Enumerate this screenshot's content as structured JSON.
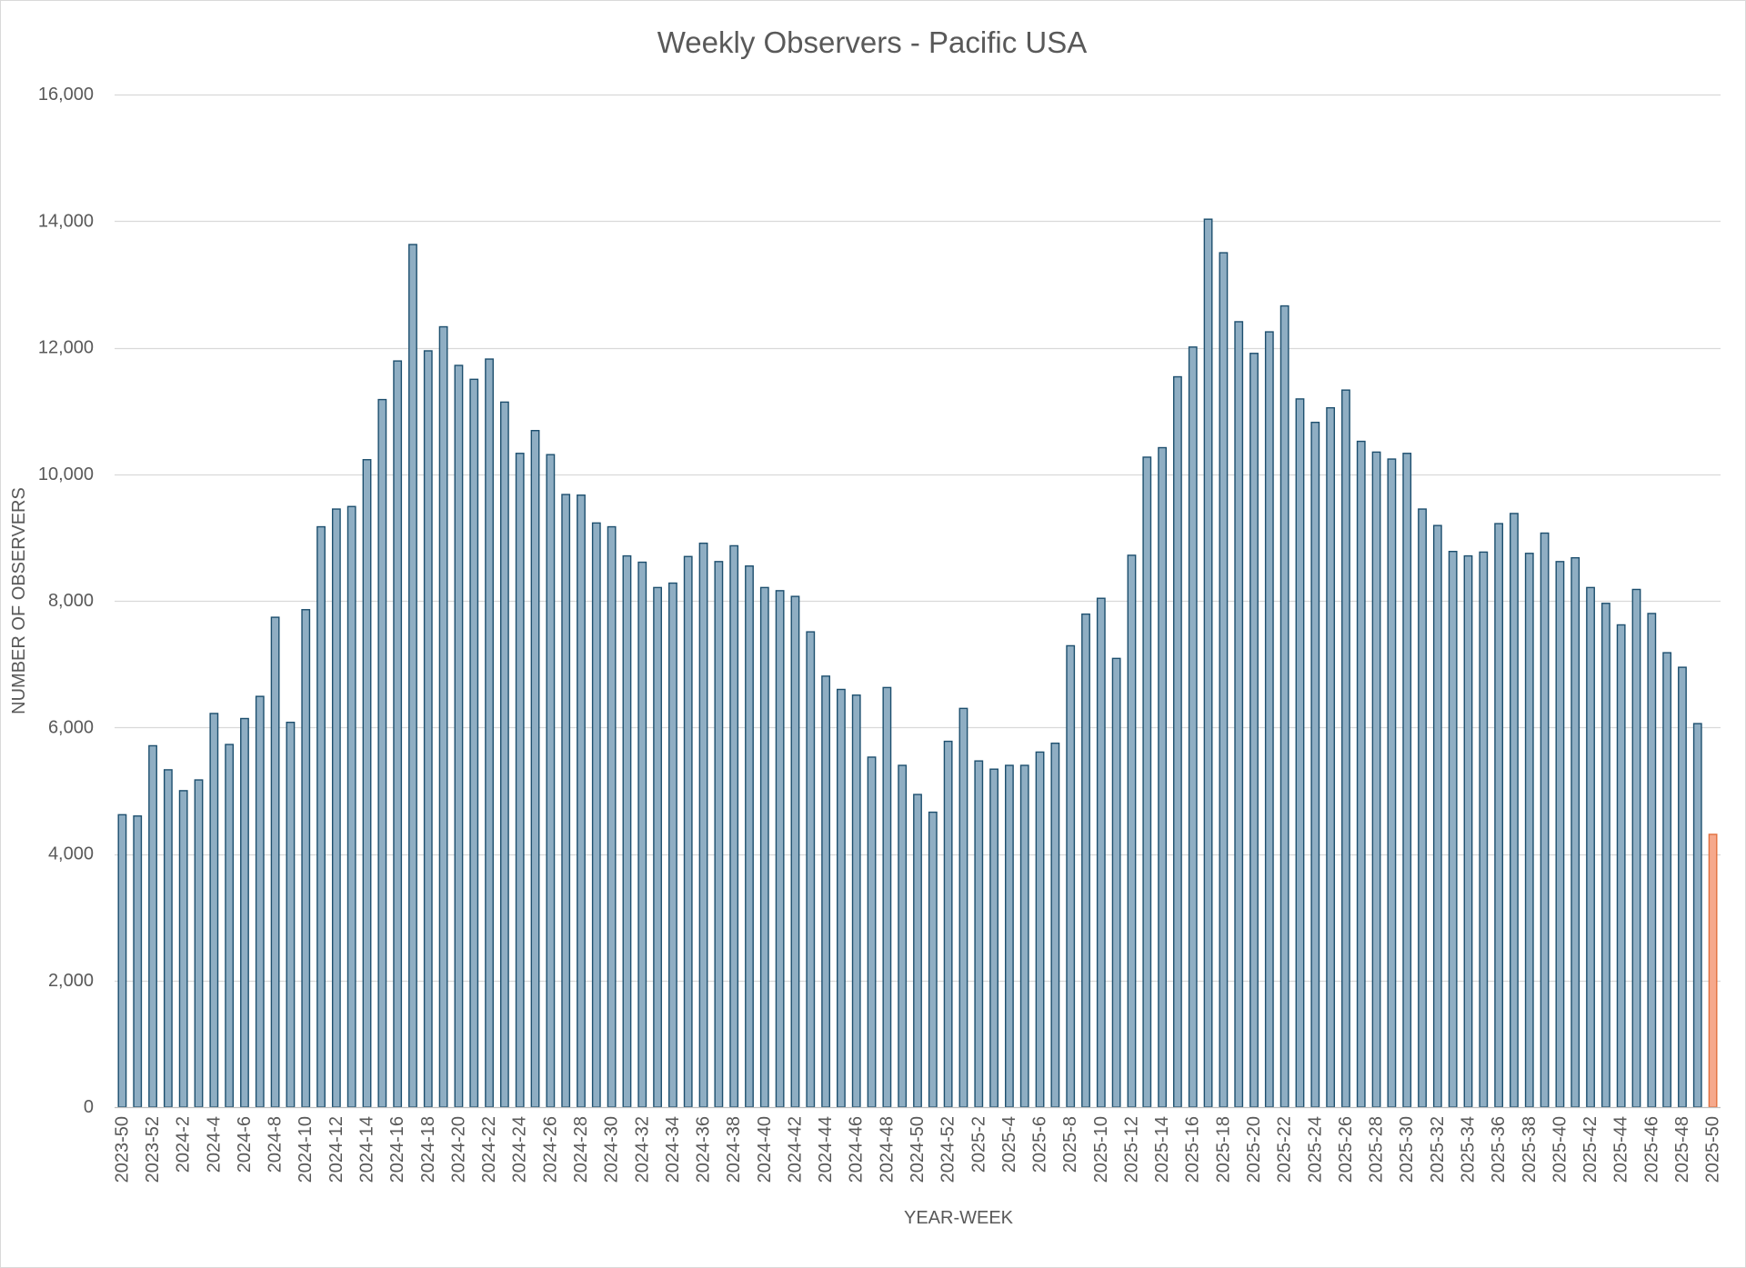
{
  "chart_data": {
    "type": "bar",
    "title": "Weekly Observers - Pacific USA",
    "xlabel": "YEAR-WEEK",
    "ylabel": "NUMBER OF OBSERVERS",
    "ylim": [
      0,
      16000
    ],
    "yticks": [
      0,
      2000,
      4000,
      6000,
      8000,
      10000,
      12000,
      14000,
      16000
    ],
    "ytick_labels": [
      "0",
      "2,000",
      "4,000",
      "6,000",
      "8,000",
      "10,000",
      "12,000",
      "14,000",
      "16,000"
    ],
    "grid": true,
    "xtick_every": 2,
    "highlighted_category": "2025-50",
    "colors": {
      "bar_fill": "#8FAEC3",
      "bar_edge": "#1D4F6E",
      "highlight_fill": "#F6A98C",
      "highlight_edge": "#E2703F",
      "grid": "#D9D9D9",
      "text": "#595959"
    },
    "categories": [
      "2023-50",
      "2023-51",
      "2023-52",
      "2024-1",
      "2024-2",
      "2024-3",
      "2024-4",
      "2024-5",
      "2024-6",
      "2024-7",
      "2024-8",
      "2024-9",
      "2024-10",
      "2024-11",
      "2024-12",
      "2024-13",
      "2024-14",
      "2024-15",
      "2024-16",
      "2024-17",
      "2024-18",
      "2024-19",
      "2024-20",
      "2024-21",
      "2024-22",
      "2024-23",
      "2024-24",
      "2024-25",
      "2024-26",
      "2024-27",
      "2024-28",
      "2024-29",
      "2024-30",
      "2024-31",
      "2024-32",
      "2024-33",
      "2024-34",
      "2024-35",
      "2024-36",
      "2024-37",
      "2024-38",
      "2024-39",
      "2024-40",
      "2024-41",
      "2024-42",
      "2024-43",
      "2024-44",
      "2024-45",
      "2024-46",
      "2024-47",
      "2024-48",
      "2024-49",
      "2024-50",
      "2024-51",
      "2024-52",
      "2025-1",
      "2025-2",
      "2025-3",
      "2025-4",
      "2025-5",
      "2025-6",
      "2025-7",
      "2025-8",
      "2025-9",
      "2025-10",
      "2025-11",
      "2025-12",
      "2025-13",
      "2025-14",
      "2025-15",
      "2025-16",
      "2025-17",
      "2025-18",
      "2025-19",
      "2025-20",
      "2025-21",
      "2025-22",
      "2025-23",
      "2025-24",
      "2025-25",
      "2025-26",
      "2025-27",
      "2025-28",
      "2025-29",
      "2025-30",
      "2025-31",
      "2025-32",
      "2025-33",
      "2025-34",
      "2025-35",
      "2025-36",
      "2025-37",
      "2025-38",
      "2025-39",
      "2025-40",
      "2025-41",
      "2025-42",
      "2025-43",
      "2025-44",
      "2025-45",
      "2025-46",
      "2025-47",
      "2025-48",
      "2025-49",
      "2025-50"
    ],
    "values": [
      4620,
      4600,
      5710,
      5330,
      5000,
      5170,
      6220,
      5730,
      6140,
      6490,
      7740,
      6080,
      7860,
      9170,
      9450,
      9490,
      10230,
      11180,
      11790,
      13630,
      11950,
      12330,
      11720,
      11500,
      11820,
      11140,
      10330,
      10690,
      10310,
      9680,
      9670,
      9230,
      9170,
      8710,
      8610,
      8210,
      8280,
      8700,
      8910,
      8620,
      8870,
      8550,
      8210,
      8160,
      8070,
      7510,
      6810,
      6600,
      6510,
      5530,
      6630,
      5400,
      4940,
      4660,
      5780,
      6300,
      5470,
      5340,
      5400,
      5400,
      5610,
      5750,
      7290,
      7790,
      8040,
      7090,
      8720,
      10270,
      10420,
      11540,
      12010,
      14030,
      13500,
      12410,
      11910,
      12250,
      12660,
      11190,
      10820,
      11050,
      11330,
      10520,
      10350,
      10240,
      10330,
      9450,
      9190,
      8780,
      8710,
      8770,
      9220,
      9380,
      8750,
      9070,
      8620,
      8680,
      8210,
      7960,
      7620,
      8180,
      7800,
      7180,
      6950,
      6060,
      4310
    ]
  }
}
